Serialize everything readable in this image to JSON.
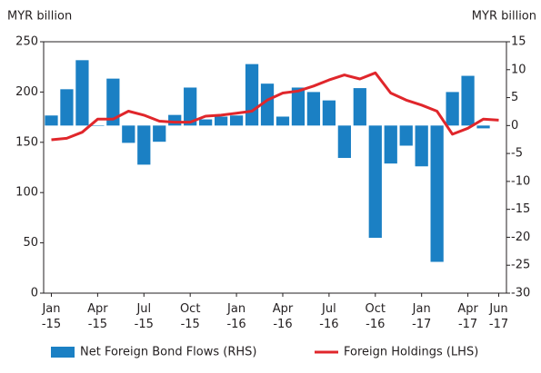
{
  "chart_data": {
    "type": "bar-line",
    "ylabel": "MYR billion",
    "y2label": "MYR billion",
    "categories": [
      "Jan -15",
      null,
      null,
      "Apr -15",
      null,
      null,
      "Jul -15",
      null,
      null,
      "Oct -15",
      null,
      null,
      "Jan -16",
      null,
      null,
      "Apr -16",
      null,
      null,
      "Jul -16",
      null,
      null,
      "Oct -16",
      null,
      null,
      "Jan -17",
      null,
      null,
      "Apr -17",
      null,
      "Jun -17"
    ],
    "series": [
      {
        "name": "Net Foreign Bond Flows (RHS)",
        "type": "bar",
        "axis": "y2",
        "color": "#1b80c4",
        "values": [
          1.8,
          6.5,
          11.7,
          0,
          8.4,
          -3.1,
          -7.0,
          -2.9,
          1.9,
          6.8,
          1.1,
          1.6,
          1.8,
          11.0,
          7.5,
          1.6,
          6.8,
          6.0,
          4.5,
          -5.8,
          6.7,
          -20.1,
          -6.8,
          -3.6,
          -7.3,
          -24.4,
          6.0,
          8.9,
          -0.5,
          null
        ]
      },
      {
        "name": "Foreign Holdings (LHS)",
        "type": "line",
        "axis": "y",
        "color": "#e0262b",
        "values": [
          152.5,
          154,
          160,
          173,
          173,
          181,
          177,
          171,
          170,
          170,
          176,
          177,
          179,
          181,
          192,
          199,
          201,
          206,
          212,
          217,
          213,
          219,
          199,
          192,
          187,
          181,
          158,
          164,
          173,
          172
        ]
      }
    ],
    "ylim": [
      0,
      250
    ],
    "yticks": [
      0,
      50,
      100,
      150,
      200,
      250
    ],
    "y2lim": [
      -30,
      15
    ],
    "y2ticks": [
      -30,
      -25,
      -20,
      -15,
      -10,
      -5,
      0,
      5,
      10,
      15
    ],
    "legend": "bottom"
  }
}
